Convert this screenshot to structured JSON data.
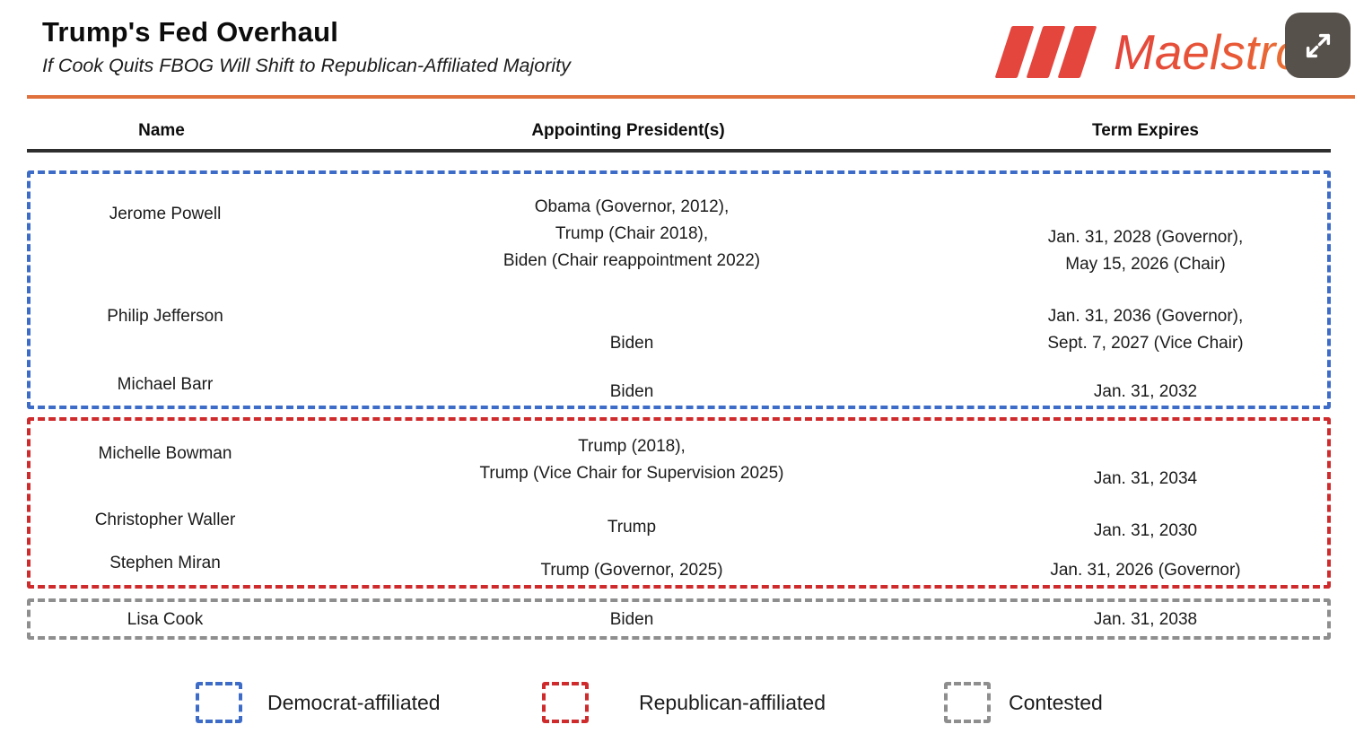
{
  "header": {
    "logo_text": "Maelstrom"
  },
  "colors": {
    "democrat": "#3D6CC8",
    "republican": "#CF2B2D",
    "contested": "#8E8E8E",
    "accent_line": "#E0703C",
    "logo_red": "#E4453C",
    "logo_orange": "#EC8A33",
    "header_rule": "#2E2E2E",
    "expand_button_bg": "#57514B"
  },
  "chart_data": {
    "type": "table",
    "title": "Trump's Fed Overhaul",
    "subtitle": "If Cook Quits FBOG Will Shift to Republican-Affiliated Majority",
    "columns": [
      "Name",
      "Appointing President(s)",
      "Term Expires"
    ],
    "groups": [
      {
        "affiliation": "democrat",
        "rows": [
          {
            "name": "Jerome Powell",
            "appointing": [
              "Obama (Governor, 2012),",
              "Trump (Chair 2018),",
              "Biden (Chair reappointment 2022)"
            ],
            "term": [
              "Jan. 31, 2028 (Governor),",
              "May 15, 2026 (Chair)"
            ]
          },
          {
            "name": "Philip Jefferson",
            "appointing": [
              "Biden"
            ],
            "term": [
              "Jan. 31, 2036 (Governor),",
              "Sept. 7, 2027 (Vice Chair)"
            ]
          },
          {
            "name": "Michael Barr",
            "appointing": [
              "Biden"
            ],
            "term": [
              "Jan. 31, 2032"
            ]
          }
        ]
      },
      {
        "affiliation": "republican",
        "rows": [
          {
            "name": "Michelle Bowman",
            "appointing": [
              "Trump (2018),",
              "Trump (Vice Chair for Supervision 2025)"
            ],
            "term": [
              "Jan. 31, 2034"
            ]
          },
          {
            "name": "Christopher Waller",
            "appointing": [
              "Trump"
            ],
            "term": [
              "Jan. 31, 2030"
            ]
          },
          {
            "name": "Stephen Miran",
            "appointing": [
              "Trump (Governor, 2025)"
            ],
            "term": [
              "Jan. 31, 2026 (Governor)"
            ]
          }
        ]
      },
      {
        "affiliation": "contested",
        "rows": [
          {
            "name": "Lisa Cook",
            "appointing": [
              "Biden"
            ],
            "term": [
              "Jan. 31, 2038"
            ]
          }
        ]
      }
    ],
    "legend": [
      {
        "key": "democrat",
        "label": "Democrat-affiliated"
      },
      {
        "key": "republican",
        "label": "Republican-affiliated"
      },
      {
        "key": "contested",
        "label": "Contested"
      }
    ]
  }
}
